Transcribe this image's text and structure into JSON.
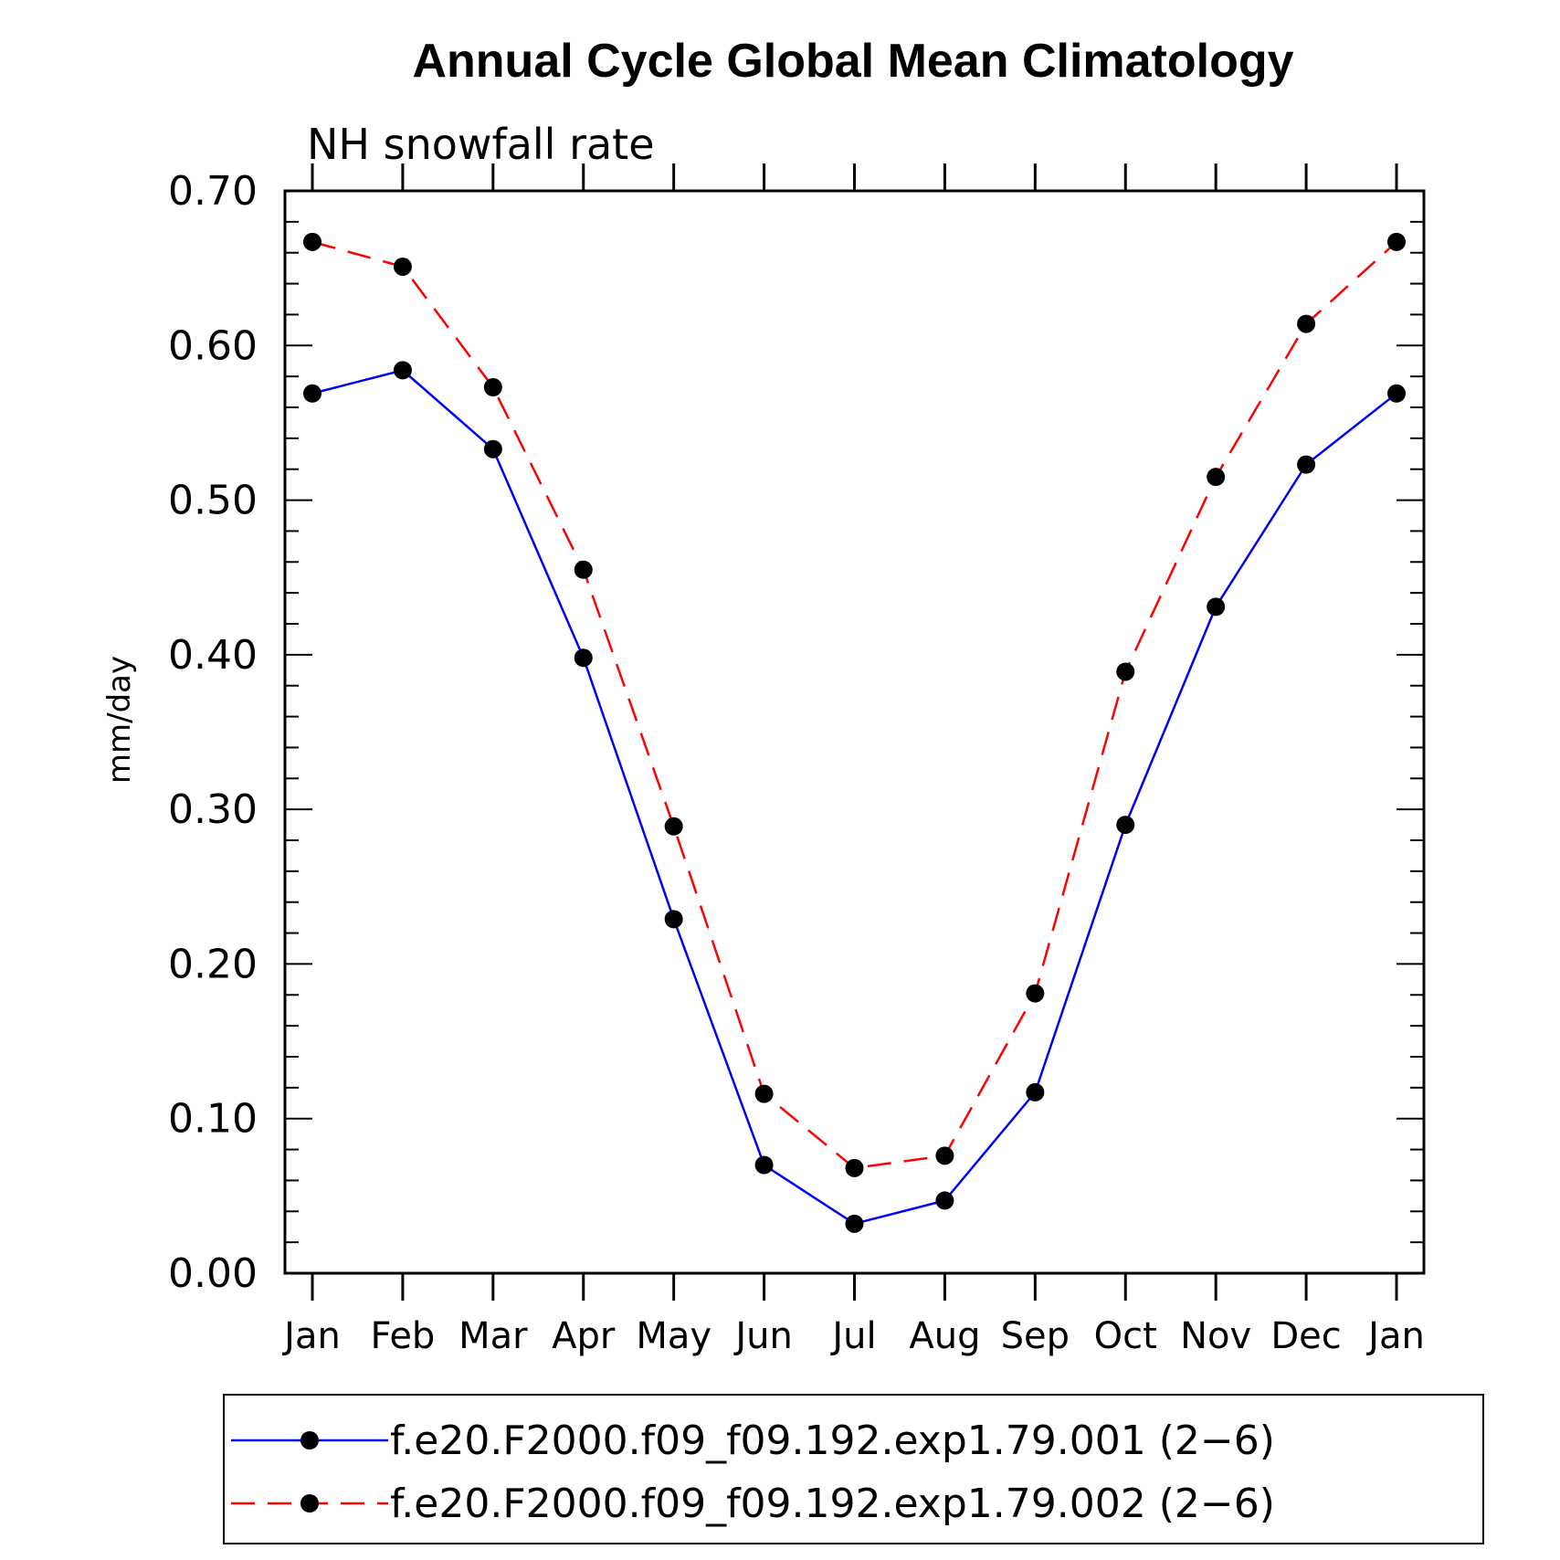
{
  "chart_data": {
    "type": "line",
    "title": "Annual Cycle Global Mean Climatology",
    "subtitle": "NH snowfall rate",
    "xlabel": "",
    "ylabel": "mm/day",
    "categories": [
      "Jan",
      "Feb",
      "Mar",
      "Apr",
      "May",
      "Jun",
      "Jul",
      "Aug",
      "Sep",
      "Oct",
      "Nov",
      "Dec",
      "Jan"
    ],
    "ylim": [
      0.0,
      0.7
    ],
    "yticks": [
      0.0,
      0.1,
      0.2,
      0.3,
      0.4,
      0.5,
      0.6,
      0.7
    ],
    "ytick_labels": [
      "0.00",
      "0.10",
      "0.20",
      "0.30",
      "0.40",
      "0.50",
      "0.60",
      "0.70"
    ],
    "grid": false,
    "legend_position": "bottom",
    "series": [
      {
        "name": "f.e20.F2000.f09_f09.192.exp1.79.001 (2−6)",
        "color": "#0000ff",
        "line_style": "solid",
        "marker": "filled-circle",
        "values": [
          0.569,
          0.584,
          0.533,
          0.398,
          0.229,
          0.07,
          0.032,
          0.047,
          0.117,
          0.29,
          0.431,
          0.523,
          0.569
        ]
      },
      {
        "name": "f.e20.F2000.f09_f09.192.exp1.79.002 (2−6)",
        "color": "#ff0000",
        "line_style": "dashed",
        "marker": "filled-circle",
        "values": [
          0.667,
          0.651,
          0.573,
          0.455,
          0.289,
          0.116,
          0.068,
          0.076,
          0.181,
          0.389,
          0.515,
          0.614,
          0.667
        ]
      }
    ]
  }
}
